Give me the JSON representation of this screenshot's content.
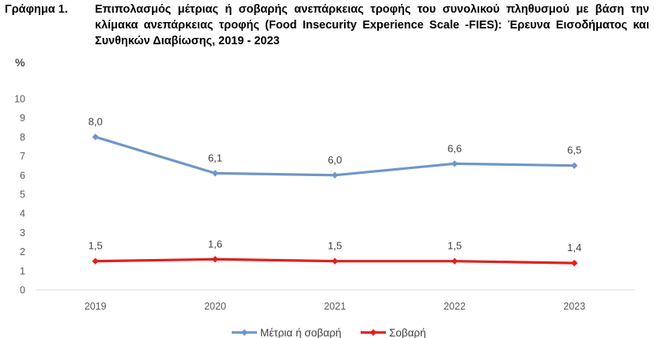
{
  "figure": {
    "label": "Γράφημα 1.",
    "title": "Επιπολασμός μέτριας ή σοβαρής ανεπάρκειας τροφής του συνολικού πληθυσμού με βάση την κλίμακα ανεπάρκειας τροφής (Food Insecurity Experience Scale -FIES): Έρευνα Εισοδήματος και Συνθηκών Διαβίωσης, 2019 - 2023"
  },
  "chart_data": {
    "type": "line",
    "title": "Επιπολασμός μέτριας ή σοβαρής ανεπάρκειας τροφής του συνολικού πληθυσμού με βάση την κλίμακα ανεπάρκειας τροφής (Food Insecurity Experience Scale -FIES): Έρευνα Εισοδήματος και Συνθηκών Διαβίωσης, 2019 - 2023",
    "ylabel": "%",
    "xlabel": "",
    "categories": [
      "2019",
      "2020",
      "2021",
      "2022",
      "2023"
    ],
    "ylim": [
      0,
      10
    ],
    "yticks": [
      0,
      1,
      2,
      3,
      4,
      5,
      6,
      7,
      8,
      9,
      10
    ],
    "series": [
      {
        "name": "Μέτρια ή σοβαρή",
        "color": "#7096c9",
        "values": [
          8.0,
          6.1,
          6.0,
          6.6,
          6.5
        ],
        "labels": [
          "8,0",
          "6,1",
          "6,0",
          "6,6",
          "6,5"
        ]
      },
      {
        "name": "Σοβαρή",
        "color": "#e0201f",
        "values": [
          1.5,
          1.6,
          1.5,
          1.5,
          1.4
        ],
        "labels": [
          "1,5",
          "1,6",
          "1,5",
          "1,5",
          "1,4"
        ]
      }
    ],
    "grid": false,
    "legend": "bottom-center"
  }
}
